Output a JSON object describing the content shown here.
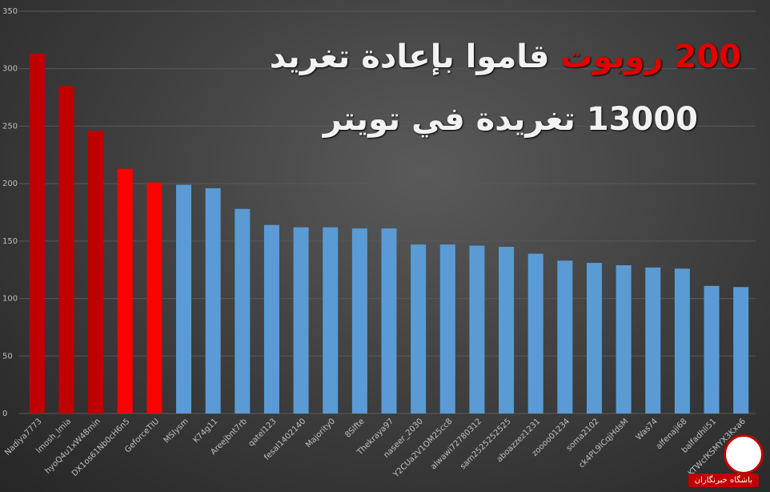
{
  "chart_data": {
    "type": "bar",
    "title_highlight": "200 روبوت",
    "title": "قاموا بإعادة تغريد",
    "subtitle": "13000 تغريدة في تويتر",
    "watermark": "باشگاه خبرنگاران",
    "categories": [
      "Nadiya7773",
      "lmosh_lmia",
      "hyoQ4u1xW48min",
      "DX1os61Nb0cH6n5",
      "GeforceTIU",
      "MSlysm",
      "K74g11",
      "Areejbnt7rb",
      "qatel123",
      "fesal1402140",
      "Majority0",
      "8Slfte",
      "Thekraya97",
      "naseer_2030",
      "Y2CUa2V1OM25cc8",
      "alwawi72780312",
      "sam2525252525",
      "aboazzez1231",
      "zoooo01234",
      "soma2102",
      "ck4PL9lCqjHdsM",
      "Was74",
      "alfenaji68",
      "balfadhli51",
      "KTWcfKSMYX3Kxa6"
    ],
    "values": [
      313,
      285,
      246,
      213,
      201,
      199,
      196,
      178,
      164,
      162,
      162,
      161,
      161,
      147,
      147,
      146,
      145,
      139,
      133,
      131,
      129,
      127,
      126,
      111,
      110
    ],
    "colors": [
      "#c00000",
      "#c00000",
      "#c00000",
      "#ff0000",
      "#ff0000",
      "#5b9bd5",
      "#5b9bd5",
      "#5b9bd5",
      "#5b9bd5",
      "#5b9bd5",
      "#5b9bd5",
      "#5b9bd5",
      "#5b9bd5",
      "#5b9bd5",
      "#5b9bd5",
      "#5b9bd5",
      "#5b9bd5",
      "#5b9bd5",
      "#5b9bd5",
      "#5b9bd5",
      "#5b9bd5",
      "#5b9bd5",
      "#5b9bd5",
      "#5b9bd5",
      "#5b9bd5"
    ],
    "ylim": [
      0,
      350
    ],
    "yticks": [
      0,
      50,
      100,
      150,
      200,
      250,
      300,
      350
    ],
    "grid": true
  }
}
